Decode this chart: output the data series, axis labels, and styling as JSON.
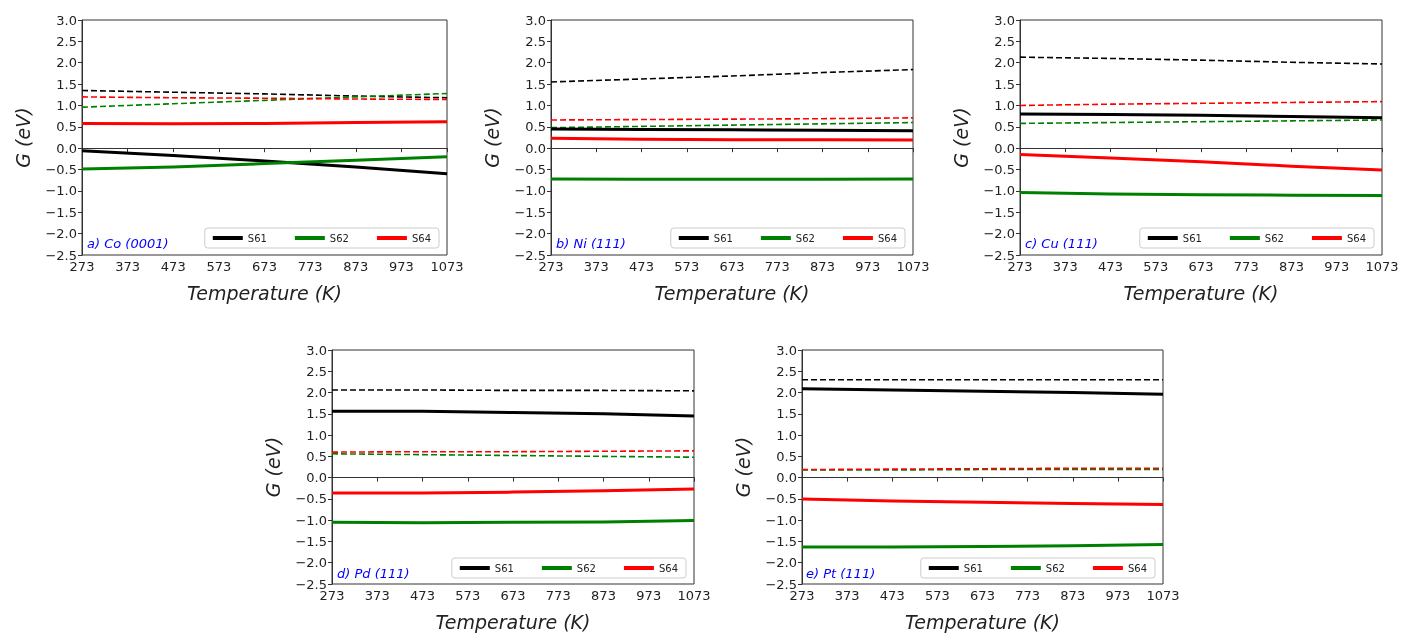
{
  "chart_data": [
    {
      "type": "line",
      "xlabel": "Temperature (K)",
      "ylabel": "G (eV)",
      "annotations": [
        "a) Co (0001)"
      ],
      "legend": "bottom right",
      "marker": "none",
      "x": [
        273,
        473,
        673,
        873,
        1073
      ],
      "xlim": [
        273,
        1073
      ],
      "xticks": [
        273,
        373,
        473,
        573,
        673,
        773,
        873,
        973,
        1073
      ],
      "ylim": [
        -2.5,
        3.0
      ],
      "yticks": [
        {
          "value": -2.5,
          "label": "−2.5"
        },
        {
          "value": -2.0,
          "label": "−2.0"
        },
        {
          "value": -1.5,
          "label": "−1.5"
        },
        {
          "value": -1.0,
          "label": "−1.0"
        },
        {
          "value": -0.5,
          "label": "−0.5"
        },
        {
          "value": 0,
          "label": "0.0"
        },
        0.5,
        {
          "value": 1,
          "label": "1.0"
        },
        1.5,
        {
          "value": 2,
          "label": "2.0"
        },
        2.5,
        {
          "value": 3,
          "label": "3.0"
        }
      ],
      "series": [
        {
          "name": "S61",
          "color": "#000000",
          "line_style": "solid",
          "values": [
            -0.06,
            -0.17,
            -0.3,
            -0.44,
            -0.6
          ]
        },
        {
          "name": "S62",
          "color": "#008000",
          "line_style": "solid",
          "values": [
            -0.49,
            -0.44,
            -0.36,
            -0.28,
            -0.2
          ]
        },
        {
          "name": "S64",
          "color": "#ff0000",
          "line_style": "solid",
          "values": [
            0.58,
            0.57,
            0.58,
            0.6,
            0.62
          ]
        },
        {
          "color": "#000000",
          "line_style": "dashed",
          "values": [
            1.35,
            1.31,
            1.27,
            1.22,
            1.18
          ]
        },
        {
          "color": "#008000",
          "line_style": "dashed",
          "values": [
            0.96,
            1.04,
            1.12,
            1.2,
            1.28
          ]
        },
        {
          "color": "#ff0000",
          "line_style": "dashed",
          "values": [
            1.2,
            1.18,
            1.17,
            1.15,
            1.14
          ]
        }
      ]
    },
    {
      "type": "line",
      "xlabel": "Temperature (K)",
      "ylabel": "G (eV)",
      "annotations": [
        "b) Ni (111)"
      ],
      "legend": "bottom right",
      "marker": "none",
      "x": [
        273,
        473,
        673,
        873,
        1073
      ],
      "xlim": [
        273,
        1073
      ],
      "xticks": [
        273,
        373,
        473,
        573,
        673,
        773,
        873,
        973,
        1073
      ],
      "ylim": [
        -2.5,
        3.0
      ],
      "yticks": [
        {
          "value": -2.5,
          "label": "−2.5"
        },
        {
          "value": -2.0,
          "label": "−2.0"
        },
        {
          "value": -1.5,
          "label": "−1.5"
        },
        {
          "value": -1.0,
          "label": "−1.0"
        },
        {
          "value": -0.5,
          "label": "−0.5"
        },
        {
          "value": 0,
          "label": "0.0"
        },
        0.5,
        {
          "value": 1,
          "label": "1.0"
        },
        1.5,
        {
          "value": 2,
          "label": "2.0"
        },
        2.5,
        {
          "value": 3,
          "label": "3.0"
        }
      ],
      "series": [
        {
          "name": "S61",
          "color": "#000000",
          "line_style": "solid",
          "values": [
            0.45,
            0.44,
            0.43,
            0.42,
            0.41
          ]
        },
        {
          "name": "S62",
          "color": "#008000",
          "line_style": "solid",
          "values": [
            -0.72,
            -0.73,
            -0.73,
            -0.73,
            -0.72
          ]
        },
        {
          "name": "S64",
          "color": "#ff0000",
          "line_style": "solid",
          "values": [
            0.23,
            0.21,
            0.2,
            0.2,
            0.19
          ]
        },
        {
          "color": "#000000",
          "line_style": "dashed",
          "values": [
            1.55,
            1.62,
            1.69,
            1.77,
            1.84
          ]
        },
        {
          "color": "#008000",
          "line_style": "dashed",
          "values": [
            0.48,
            0.51,
            0.54,
            0.57,
            0.6
          ]
        },
        {
          "color": "#ff0000",
          "line_style": "dashed",
          "values": [
            0.66,
            0.67,
            0.68,
            0.69,
            0.71
          ]
        }
      ]
    },
    {
      "type": "line",
      "xlabel": "Temperature (K)",
      "ylabel": "G (eV)",
      "annotations": [
        "c) Cu (111)"
      ],
      "legend": "bottom right",
      "marker": "none",
      "x": [
        273,
        473,
        673,
        873,
        1073
      ],
      "xlim": [
        273,
        1073
      ],
      "xticks": [
        273,
        373,
        473,
        573,
        673,
        773,
        873,
        973,
        1073
      ],
      "ylim": [
        -2.5,
        3.0
      ],
      "yticks": [
        {
          "value": -2.5,
          "label": "−2.5"
        },
        {
          "value": -2.0,
          "label": "−2.0"
        },
        {
          "value": -1.5,
          "label": "−1.5"
        },
        {
          "value": -1.0,
          "label": "−1.0"
        },
        {
          "value": -0.5,
          "label": "−0.5"
        },
        {
          "value": 0,
          "label": "0.0"
        },
        0.5,
        {
          "value": 1,
          "label": "1.0"
        },
        1.5,
        {
          "value": 2,
          "label": "2.0"
        },
        2.5,
        {
          "value": 3,
          "label": "3.0"
        }
      ],
      "series": [
        {
          "name": "S61",
          "color": "#000000",
          "line_style": "solid",
          "values": [
            0.8,
            0.79,
            0.77,
            0.74,
            0.71
          ]
        },
        {
          "name": "S62",
          "color": "#008000",
          "line_style": "solid",
          "values": [
            -1.04,
            -1.07,
            -1.09,
            -1.1,
            -1.11
          ]
        },
        {
          "name": "S64",
          "color": "#ff0000",
          "line_style": "solid",
          "values": [
            -0.15,
            -0.23,
            -0.32,
            -0.42,
            -0.51
          ]
        },
        {
          "color": "#000000",
          "line_style": "dashed",
          "values": [
            2.13,
            2.1,
            2.06,
            2.01,
            1.97
          ]
        },
        {
          "color": "#008000",
          "line_style": "dashed",
          "values": [
            0.58,
            0.6,
            0.62,
            0.64,
            0.66
          ]
        },
        {
          "color": "#ff0000",
          "line_style": "dashed",
          "values": [
            1.0,
            1.03,
            1.05,
            1.07,
            1.09
          ]
        }
      ]
    },
    {
      "type": "line",
      "xlabel": "Temperature (K)",
      "ylabel": "G (eV)",
      "annotations": [
        "d) Pd (111)"
      ],
      "legend": "bottom right",
      "marker": "none",
      "x": [
        273,
        473,
        673,
        873,
        1073
      ],
      "xlim": [
        273,
        1073
      ],
      "xticks": [
        273,
        373,
        473,
        573,
        673,
        773,
        873,
        973,
        1073
      ],
      "ylim": [
        -2.5,
        3.0
      ],
      "yticks": [
        {
          "value": -2.5,
          "label": "−2.5"
        },
        {
          "value": -2.0,
          "label": "−2.0"
        },
        {
          "value": -1.5,
          "label": "−1.5"
        },
        {
          "value": -1.0,
          "label": "−1.0"
        },
        {
          "value": -0.5,
          "label": "−0.5"
        },
        {
          "value": 0,
          "label": "0.0"
        },
        0.5,
        {
          "value": 1,
          "label": "1.0"
        },
        1.5,
        {
          "value": 2,
          "label": "2.0"
        },
        2.5,
        {
          "value": 3,
          "label": "3.0"
        }
      ],
      "series": [
        {
          "name": "S61",
          "color": "#000000",
          "line_style": "solid",
          "values": [
            1.56,
            1.56,
            1.53,
            1.5,
            1.45
          ]
        },
        {
          "name": "S62",
          "color": "#008000",
          "line_style": "solid",
          "values": [
            -1.05,
            -1.06,
            -1.05,
            -1.04,
            -1.01
          ]
        },
        {
          "name": "S64",
          "color": "#ff0000",
          "line_style": "solid",
          "values": [
            -0.36,
            -0.36,
            -0.34,
            -0.31,
            -0.27
          ]
        },
        {
          "color": "#000000",
          "line_style": "dashed",
          "values": [
            2.06,
            2.06,
            2.05,
            2.05,
            2.04
          ]
        },
        {
          "color": "#008000",
          "line_style": "dashed",
          "values": [
            0.56,
            0.54,
            0.52,
            0.5,
            0.48
          ]
        },
        {
          "color": "#ff0000",
          "line_style": "dashed",
          "values": [
            0.6,
            0.61,
            0.61,
            0.62,
            0.63
          ]
        }
      ]
    },
    {
      "type": "line",
      "xlabel": "Temperature (K)",
      "ylabel": "G (eV)",
      "annotations": [
        "e) Pt (111)"
      ],
      "legend": "bottom right",
      "marker": "none",
      "x": [
        273,
        473,
        673,
        873,
        1073
      ],
      "xlim": [
        273,
        1073
      ],
      "xticks": [
        273,
        373,
        473,
        573,
        673,
        773,
        873,
        973,
        1073
      ],
      "ylim": [
        -2.5,
        3.0
      ],
      "yticks": [
        {
          "value": -2.5,
          "label": "−2.5"
        },
        {
          "value": -2.0,
          "label": "−2.0"
        },
        {
          "value": -1.5,
          "label": "−1.5"
        },
        {
          "value": -1.0,
          "label": "−1.0"
        },
        {
          "value": -0.5,
          "label": "−0.5"
        },
        {
          "value": 0,
          "label": "0.0"
        },
        0.5,
        {
          "value": 1,
          "label": "1.0"
        },
        1.5,
        {
          "value": 2,
          "label": "2.0"
        },
        2.5,
        {
          "value": 3,
          "label": "3.0"
        }
      ],
      "series": [
        {
          "name": "S61",
          "color": "#000000",
          "line_style": "solid",
          "values": [
            2.09,
            2.06,
            2.03,
            2.0,
            1.96
          ]
        },
        {
          "name": "S62",
          "color": "#008000",
          "line_style": "solid",
          "values": [
            -1.63,
            -1.63,
            -1.62,
            -1.6,
            -1.57
          ]
        },
        {
          "name": "S64",
          "color": "#ff0000",
          "line_style": "solid",
          "values": [
            -0.5,
            -0.55,
            -0.58,
            -0.61,
            -0.63
          ]
        },
        {
          "color": "#000000",
          "line_style": "dashed",
          "values": [
            2.3,
            2.3,
            2.3,
            2.3,
            2.3
          ]
        },
        {
          "color": "#008000",
          "line_style": "dashed",
          "values": [
            0.18,
            0.18,
            0.19,
            0.19,
            0.19
          ]
        },
        {
          "color": "#ff0000",
          "line_style": "dashed",
          "values": [
            0.19,
            0.2,
            0.21,
            0.22,
            0.22
          ]
        }
      ]
    }
  ]
}
